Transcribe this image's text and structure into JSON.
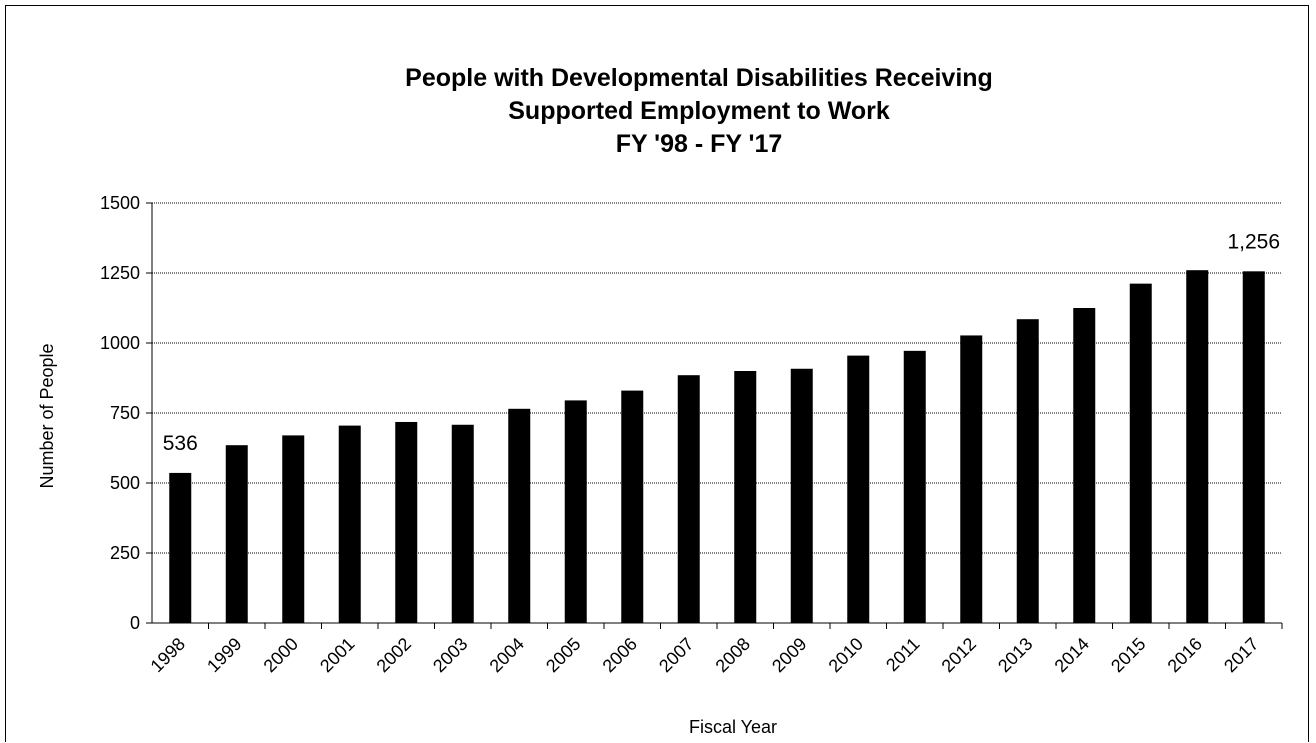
{
  "chart_data": {
    "type": "bar",
    "title_lines": [
      "People with Developmental Disabilities Receiving",
      "Supported Employment to Work",
      "FY '98 - FY '17"
    ],
    "xlabel": "Fiscal Year",
    "ylabel": "Number of People",
    "ylim": [
      0,
      1500
    ],
    "yticks": [
      "0",
      "250",
      "500",
      "750",
      "1000",
      "1250",
      "1500"
    ],
    "grid": true,
    "legend": "none",
    "bar_color": "#000000",
    "categories": [
      "1998",
      "1999",
      "2000",
      "2001",
      "2002",
      "2003",
      "2004",
      "2005",
      "2006",
      "2007",
      "2008",
      "2009",
      "2010",
      "2011",
      "2012",
      "2013",
      "2014",
      "2015",
      "2016",
      "2017"
    ],
    "values": [
      536,
      635,
      670,
      705,
      718,
      708,
      765,
      795,
      830,
      885,
      900,
      908,
      955,
      972,
      1027,
      1085,
      1125,
      1212,
      1260,
      1256
    ],
    "data_labels": [
      {
        "index": 0,
        "text": "536"
      },
      {
        "index": 19,
        "text": "1,256"
      }
    ]
  }
}
